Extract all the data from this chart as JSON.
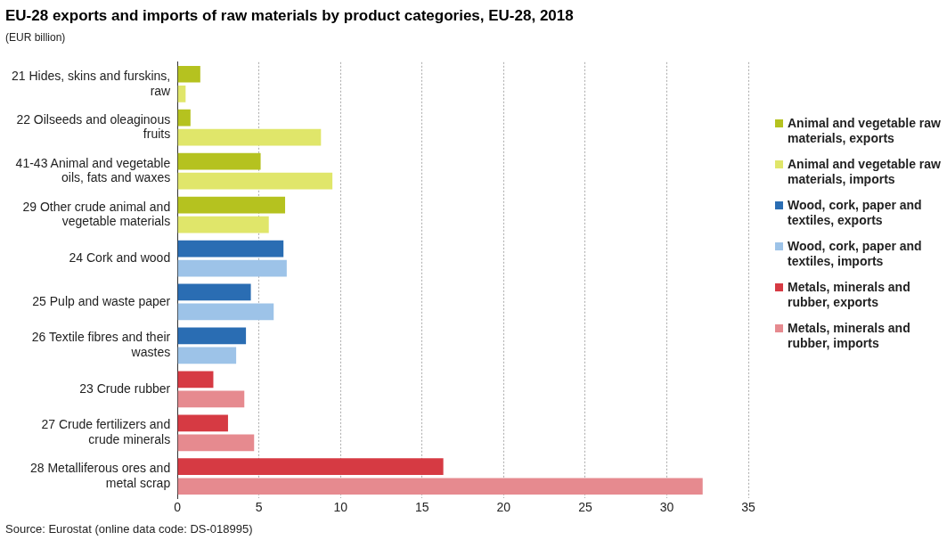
{
  "chart_data": {
    "type": "bar",
    "orientation": "horizontal",
    "title": "EU-28 exports and imports of raw materials by product categories, EU-28, 2018",
    "xlabel": "(EUR billion)",
    "categories": [
      "21 Hides, skins and furskins, raw",
      "22 Oilseeds and oleaginous fruits",
      "41-43 Animal and vegetable oils, fats and waxes",
      "29 Other crude animal and vegetable materials",
      "24 Cork and wood",
      "25 Pulp and waste paper",
      "26 Textile fibres and their wastes",
      "23 Crude rubber",
      "27 Crude fertilizers and crude minerals",
      "28 Metalliferous ores and metal scrap"
    ],
    "series": [
      {
        "name": "Animal and vegetable raw materials, exports",
        "color": "#b5c21f",
        "values": [
          1.4,
          0.8,
          5.1,
          6.6,
          null,
          null,
          null,
          null,
          null,
          null
        ]
      },
      {
        "name": "Animal and vegetable raw materials, imports",
        "color": "#e0e66a",
        "values": [
          0.5,
          8.8,
          9.5,
          5.6,
          null,
          null,
          null,
          null,
          null,
          null
        ]
      },
      {
        "name": "Wood, cork, paper and textiles, exports",
        "color": "#2a6db3",
        "values": [
          null,
          null,
          null,
          null,
          6.5,
          4.5,
          4.2,
          null,
          null,
          null
        ]
      },
      {
        "name": "Wood, cork, paper and textiles, imports",
        "color": "#9dc3e8",
        "values": [
          null,
          null,
          null,
          null,
          6.7,
          5.9,
          3.6,
          null,
          null,
          null
        ]
      },
      {
        "name": "Metals, minerals and rubber, exports",
        "color": "#d63a43",
        "values": [
          null,
          null,
          null,
          null,
          null,
          null,
          null,
          2.2,
          3.1,
          16.3
        ]
      },
      {
        "name": "Metals, minerals and rubber, imports",
        "color": "#e68a8f",
        "values": [
          null,
          null,
          null,
          null,
          null,
          null,
          null,
          4.1,
          4.7,
          32.2
        ]
      }
    ],
    "xlim": [
      0,
      35
    ],
    "xticks": [
      0,
      5,
      10,
      15,
      20,
      25,
      30,
      35
    ],
    "grid": "x",
    "legend": "right",
    "annotations": [
      "Source: Eurostat (online data code: DS-018995)"
    ]
  }
}
